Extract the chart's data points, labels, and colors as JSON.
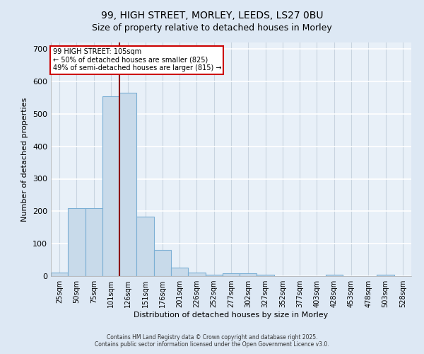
{
  "title_line1": "99, HIGH STREET, MORLEY, LEEDS, LS27 0BU",
  "title_line2": "Size of property relative to detached houses in Morley",
  "xlabel": "Distribution of detached houses by size in Morley",
  "ylabel": "Number of detached properties",
  "bar_labels": [
    "25sqm",
    "50sqm",
    "75sqm",
    "101sqm",
    "126sqm",
    "151sqm",
    "176sqm",
    "201sqm",
    "226sqm",
    "252sqm",
    "277sqm",
    "302sqm",
    "327sqm",
    "352sqm",
    "377sqm",
    "403sqm",
    "428sqm",
    "453sqm",
    "478sqm",
    "503sqm",
    "528sqm"
  ],
  "bar_values": [
    10,
    210,
    210,
    555,
    565,
    183,
    80,
    27,
    10,
    5,
    8,
    8,
    5,
    0,
    0,
    0,
    5,
    0,
    0,
    5,
    0
  ],
  "bar_color": "#c8daea",
  "bar_edgecolor": "#7bafd4",
  "red_line_x": 3.48,
  "red_line_label_title": "99 HIGH STREET: 105sqm",
  "red_line_label_line2": "← 50% of detached houses are smaller (825)",
  "red_line_label_line3": "49% of semi-detached houses are larger (815) →",
  "annotation_box_facecolor": "#ffffff",
  "annotation_box_edgecolor": "#cc0000",
  "ylim": [
    0,
    720
  ],
  "yticks": [
    0,
    100,
    200,
    300,
    400,
    500,
    600,
    700
  ],
  "background_color": "#dde8f4",
  "plot_bg_color": "#e8f0f8",
  "grid_color": "#c8d4e0",
  "footer_line1": "Contains HM Land Registry data © Crown copyright and database right 2025.",
  "footer_line2": "Contains public sector information licensed under the Open Government Licence v3.0."
}
